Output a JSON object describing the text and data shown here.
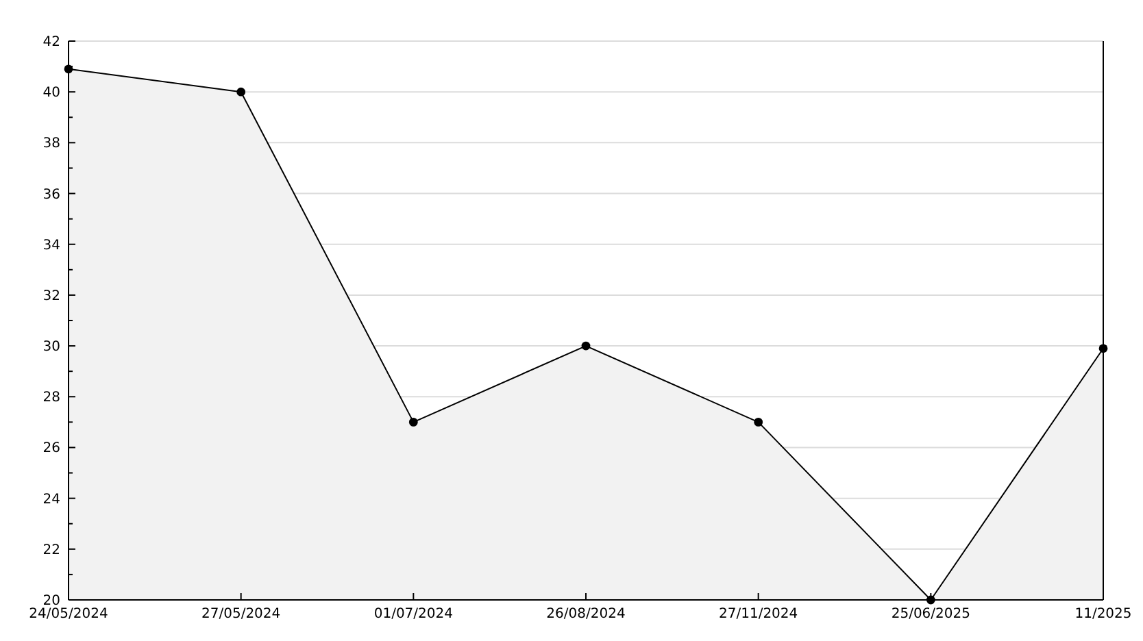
{
  "chart_data": {
    "type": "area",
    "categories": [
      "24/05/2024",
      "27/05/2024",
      "01/07/2024",
      "26/08/2024",
      "27/11/2024",
      "25/06/2025",
      "11/2025"
    ],
    "series": [
      {
        "color": "#000000",
        "values": [
          40.9,
          40,
          27,
          30,
          27,
          20,
          29.9
        ]
      }
    ],
    "ylim": [
      20,
      42
    ],
    "yticks": [
      20,
      {
        "value": 21,
        "label": null
      },
      22,
      {
        "value": 23,
        "label": null
      },
      24,
      {
        "value": 25,
        "label": null
      },
      26,
      {
        "value": 27,
        "label": null
      },
      28,
      {
        "value": 29,
        "label": null
      },
      30,
      {
        "value": 31,
        "label": null
      },
      32,
      {
        "value": 33,
        "label": null
      },
      34,
      {
        "value": 35,
        "label": null
      },
      36,
      {
        "value": 37,
        "label": null
      },
      38,
      {
        "value": 39,
        "label": null
      },
      40,
      {
        "value": 41,
        "label": null
      },
      42
    ],
    "grid": "y",
    "marker": "circle",
    "line_style": "solid"
  }
}
